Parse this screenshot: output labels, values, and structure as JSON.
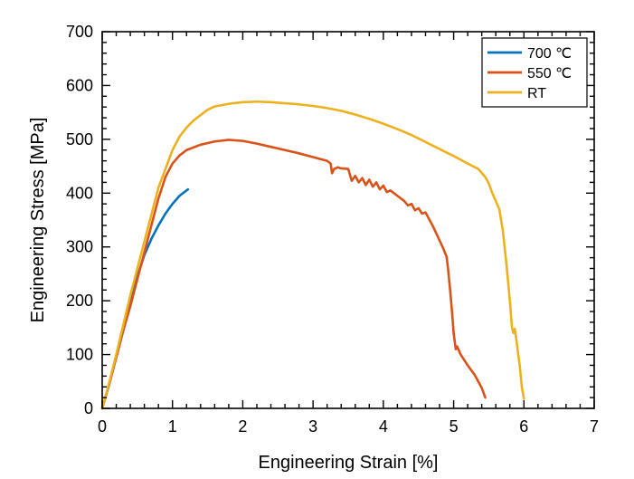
{
  "chart_data": {
    "type": "line",
    "xlabel": "Engineering Strain [%]",
    "ylabel": "Engineering Stress [MPa]",
    "xlim": [
      0,
      7
    ],
    "ylim": [
      0,
      700
    ],
    "xticks": [
      0,
      1,
      2,
      3,
      4,
      5,
      6,
      7
    ],
    "yticks": [
      0,
      100,
      200,
      300,
      400,
      500,
      600,
      700
    ],
    "grid": false,
    "legend_position": "top-right",
    "series": [
      {
        "name": "700 ℃",
        "color": "#0072bd",
        "points": [
          [
            0,
            0
          ],
          [
            0.1,
            45
          ],
          [
            0.2,
            95
          ],
          [
            0.3,
            145
          ],
          [
            0.4,
            195
          ],
          [
            0.5,
            245
          ],
          [
            0.6,
            285
          ],
          [
            0.7,
            315
          ],
          [
            0.8,
            340
          ],
          [
            0.9,
            362
          ],
          [
            1.0,
            380
          ],
          [
            1.1,
            395
          ],
          [
            1.22,
            407
          ]
        ]
      },
      {
        "name": "550 ℃",
        "color": "#d95319",
        "points": [
          [
            0,
            0
          ],
          [
            0.1,
            45
          ],
          [
            0.2,
            95
          ],
          [
            0.3,
            145
          ],
          [
            0.4,
            190
          ],
          [
            0.5,
            240
          ],
          [
            0.6,
            290
          ],
          [
            0.7,
            340
          ],
          [
            0.8,
            390
          ],
          [
            0.9,
            430
          ],
          [
            1.0,
            455
          ],
          [
            1.1,
            470
          ],
          [
            1.2,
            480
          ],
          [
            1.4,
            490
          ],
          [
            1.6,
            496
          ],
          [
            1.8,
            499
          ],
          [
            2.0,
            497
          ],
          [
            2.2,
            492
          ],
          [
            2.4,
            486
          ],
          [
            2.6,
            480
          ],
          [
            2.8,
            474
          ],
          [
            3.0,
            467
          ],
          [
            3.2,
            460
          ],
          [
            3.25,
            455
          ],
          [
            3.27,
            437
          ],
          [
            3.3,
            445
          ],
          [
            3.35,
            448
          ],
          [
            3.4,
            446
          ],
          [
            3.5,
            445
          ],
          [
            3.55,
            423
          ],
          [
            3.6,
            432
          ],
          [
            3.65,
            420
          ],
          [
            3.7,
            428
          ],
          [
            3.75,
            415
          ],
          [
            3.8,
            425
          ],
          [
            3.85,
            412
          ],
          [
            3.9,
            420
          ],
          [
            3.95,
            407
          ],
          [
            4.0,
            414
          ],
          [
            4.05,
            402
          ],
          [
            4.1,
            405
          ],
          [
            4.2,
            395
          ],
          [
            4.3,
            385
          ],
          [
            4.35,
            377
          ],
          [
            4.4,
            380
          ],
          [
            4.45,
            368
          ],
          [
            4.5,
            372
          ],
          [
            4.55,
            362
          ],
          [
            4.6,
            364
          ],
          [
            4.65,
            352
          ],
          [
            4.7,
            340
          ],
          [
            4.75,
            326
          ],
          [
            4.8,
            312
          ],
          [
            4.85,
            298
          ],
          [
            4.88,
            288
          ],
          [
            4.9,
            282
          ],
          [
            4.92,
            260
          ],
          [
            4.95,
            220
          ],
          [
            4.98,
            175
          ],
          [
            5.0,
            140
          ],
          [
            5.03,
            110
          ],
          [
            5.05,
            115
          ],
          [
            5.1,
            100
          ],
          [
            5.2,
            80
          ],
          [
            5.3,
            62
          ],
          [
            5.4,
            38
          ],
          [
            5.45,
            20
          ]
        ]
      },
      {
        "name": "RT",
        "color": "#edb120",
        "points": [
          [
            0,
            0
          ],
          [
            0.1,
            48
          ],
          [
            0.2,
            100
          ],
          [
            0.3,
            155
          ],
          [
            0.4,
            210
          ],
          [
            0.5,
            260
          ],
          [
            0.6,
            310
          ],
          [
            0.7,
            360
          ],
          [
            0.8,
            410
          ],
          [
            0.9,
            445
          ],
          [
            1.0,
            480
          ],
          [
            1.1,
            505
          ],
          [
            1.2,
            522
          ],
          [
            1.3,
            535
          ],
          [
            1.4,
            545
          ],
          [
            1.5,
            555
          ],
          [
            1.6,
            561
          ],
          [
            1.8,
            566
          ],
          [
            2.0,
            569
          ],
          [
            2.2,
            570
          ],
          [
            2.4,
            569
          ],
          [
            2.6,
            567
          ],
          [
            2.8,
            565
          ],
          [
            3.0,
            562
          ],
          [
            3.2,
            558
          ],
          [
            3.4,
            553
          ],
          [
            3.6,
            546
          ],
          [
            3.8,
            538
          ],
          [
            4.0,
            529
          ],
          [
            4.2,
            519
          ],
          [
            4.4,
            508
          ],
          [
            4.6,
            495
          ],
          [
            4.8,
            482
          ],
          [
            5.0,
            469
          ],
          [
            5.2,
            455
          ],
          [
            5.35,
            445
          ],
          [
            5.45,
            430
          ],
          [
            5.5,
            418
          ],
          [
            5.55,
            400
          ],
          [
            5.6,
            385
          ],
          [
            5.65,
            370
          ],
          [
            5.7,
            330
          ],
          [
            5.75,
            270
          ],
          [
            5.8,
            200
          ],
          [
            5.83,
            150
          ],
          [
            5.85,
            140
          ],
          [
            5.87,
            148
          ],
          [
            5.9,
            120
          ],
          [
            5.94,
            80
          ],
          [
            5.97,
            40
          ],
          [
            6.0,
            18
          ]
        ]
      }
    ]
  }
}
